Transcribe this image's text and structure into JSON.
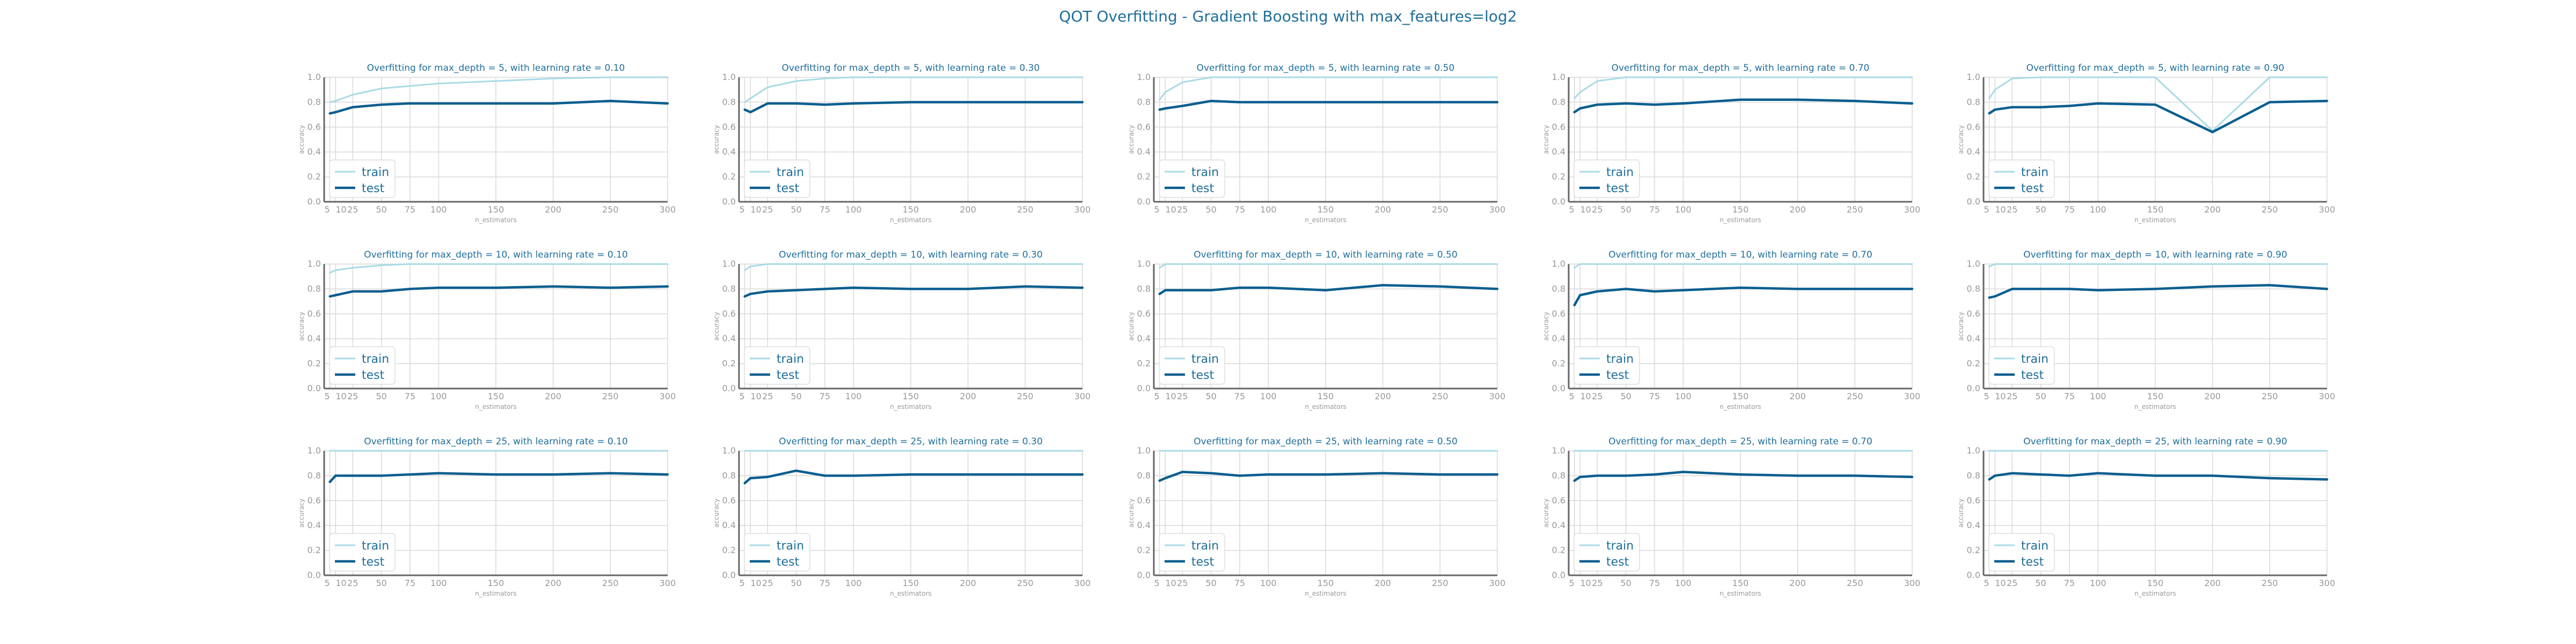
{
  "title": "QOT Overfitting - Gradient Boosting with max_features=log2",
  "colors": {
    "train": "#a8dbe6",
    "test": "#0a5e8f",
    "title": "#1f6e9a",
    "grid": "#d9d9d9",
    "axis": "#666666",
    "tick": "#999999"
  },
  "chart_data": [
    {
      "type": "line",
      "title": "Overfitting for max_depth = 5, with learning rate = 0.10",
      "xlabel": "n_estimators",
      "ylabel": "accuracy",
      "x": [
        5,
        10,
        25,
        50,
        75,
        100,
        150,
        200,
        250,
        300
      ],
      "ylim": [
        0,
        1
      ],
      "xticks": [
        5,
        10,
        25,
        50,
        75,
        100,
        150,
        200,
        250,
        300
      ],
      "yticks": [
        0.0,
        0.2,
        0.4,
        0.6,
        0.8,
        1.0
      ],
      "grid": true,
      "legend": "lower-left",
      "series": [
        {
          "name": "train",
          "values": [
            0.8,
            0.81,
            0.86,
            0.91,
            0.93,
            0.95,
            0.97,
            0.99,
            1.0,
            1.0
          ]
        },
        {
          "name": "test",
          "values": [
            0.71,
            0.72,
            0.76,
            0.78,
            0.79,
            0.79,
            0.79,
            0.79,
            0.81,
            0.79
          ]
        }
      ]
    },
    {
      "type": "line",
      "title": "Overfitting for max_depth = 5, with learning rate = 0.30",
      "xlabel": "n_estimators",
      "ylabel": "accuracy",
      "x": [
        5,
        10,
        25,
        50,
        75,
        100,
        150,
        200,
        250,
        300
      ],
      "ylim": [
        0,
        1
      ],
      "xticks": [
        5,
        10,
        25,
        50,
        75,
        100,
        150,
        200,
        250,
        300
      ],
      "yticks": [
        0.0,
        0.2,
        0.4,
        0.6,
        0.8,
        1.0
      ],
      "grid": true,
      "legend": "lower-left",
      "series": [
        {
          "name": "train",
          "values": [
            0.8,
            0.83,
            0.92,
            0.97,
            0.99,
            1.0,
            1.0,
            1.0,
            1.0,
            1.0
          ]
        },
        {
          "name": "test",
          "values": [
            0.74,
            0.72,
            0.79,
            0.79,
            0.78,
            0.79,
            0.8,
            0.8,
            0.8,
            0.8
          ]
        }
      ]
    },
    {
      "type": "line",
      "title": "Overfitting for max_depth = 5, with learning rate = 0.50",
      "xlabel": "n_estimators",
      "ylabel": "accuracy",
      "x": [
        5,
        10,
        25,
        50,
        75,
        100,
        150,
        200,
        250,
        300
      ],
      "ylim": [
        0,
        1
      ],
      "xticks": [
        5,
        10,
        25,
        50,
        75,
        100,
        150,
        200,
        250,
        300
      ],
      "yticks": [
        0.0,
        0.2,
        0.4,
        0.6,
        0.8,
        1.0
      ],
      "grid": true,
      "legend": "lower-left",
      "series": [
        {
          "name": "train",
          "values": [
            0.82,
            0.88,
            0.96,
            1.0,
            1.0,
            1.0,
            1.0,
            1.0,
            1.0,
            1.0
          ]
        },
        {
          "name": "test",
          "values": [
            0.74,
            0.75,
            0.77,
            0.81,
            0.8,
            0.8,
            0.8,
            0.8,
            0.8,
            0.8
          ]
        }
      ]
    },
    {
      "type": "line",
      "title": "Overfitting for max_depth = 5, with learning rate = 0.70",
      "xlabel": "n_estimators",
      "ylabel": "accuracy",
      "x": [
        5,
        10,
        25,
        50,
        75,
        100,
        150,
        200,
        250,
        300
      ],
      "ylim": [
        0,
        1
      ],
      "xticks": [
        5,
        10,
        25,
        50,
        75,
        100,
        150,
        200,
        250,
        300
      ],
      "yticks": [
        0.0,
        0.2,
        0.4,
        0.6,
        0.8,
        1.0
      ],
      "grid": true,
      "legend": "lower-left",
      "series": [
        {
          "name": "train",
          "values": [
            0.83,
            0.88,
            0.97,
            1.0,
            1.0,
            1.0,
            1.0,
            1.0,
            1.0,
            1.0
          ]
        },
        {
          "name": "test",
          "values": [
            0.72,
            0.75,
            0.78,
            0.79,
            0.78,
            0.79,
            0.82,
            0.82,
            0.81,
            0.79
          ]
        }
      ]
    },
    {
      "type": "line",
      "title": "Overfitting for max_depth = 5, with learning rate = 0.90",
      "xlabel": "n_estimators",
      "ylabel": "accuracy",
      "x": [
        5,
        10,
        25,
        50,
        75,
        100,
        150,
        200,
        250,
        300
      ],
      "ylim": [
        0,
        1
      ],
      "xticks": [
        5,
        10,
        25,
        50,
        75,
        100,
        150,
        200,
        250,
        300
      ],
      "yticks": [
        0.0,
        0.2,
        0.4,
        0.6,
        0.8,
        1.0
      ],
      "grid": true,
      "legend": "lower-left",
      "series": [
        {
          "name": "train",
          "values": [
            0.83,
            0.9,
            0.99,
            1.0,
            1.0,
            1.0,
            1.0,
            0.57,
            1.0,
            1.0
          ]
        },
        {
          "name": "test",
          "values": [
            0.71,
            0.74,
            0.76,
            0.76,
            0.77,
            0.79,
            0.78,
            0.56,
            0.8,
            0.81
          ]
        }
      ]
    },
    {
      "type": "line",
      "title": "Overfitting for max_depth = 10, with learning rate = 0.10",
      "xlabel": "n_estimators",
      "ylabel": "accuracy",
      "x": [
        5,
        10,
        25,
        50,
        75,
        100,
        150,
        200,
        250,
        300
      ],
      "ylim": [
        0,
        1
      ],
      "xticks": [
        5,
        10,
        25,
        50,
        75,
        100,
        150,
        200,
        250,
        300
      ],
      "yticks": [
        0.0,
        0.2,
        0.4,
        0.6,
        0.8,
        1.0
      ],
      "grid": true,
      "legend": "lower-left",
      "series": [
        {
          "name": "train",
          "values": [
            0.93,
            0.95,
            0.97,
            0.99,
            1.0,
            1.0,
            1.0,
            1.0,
            1.0,
            1.0
          ]
        },
        {
          "name": "test",
          "values": [
            0.74,
            0.75,
            0.78,
            0.78,
            0.8,
            0.81,
            0.81,
            0.82,
            0.81,
            0.82
          ]
        }
      ]
    },
    {
      "type": "line",
      "title": "Overfitting for max_depth = 10, with learning rate = 0.30",
      "xlabel": "n_estimators",
      "ylabel": "accuracy",
      "x": [
        5,
        10,
        25,
        50,
        75,
        100,
        150,
        200,
        250,
        300
      ],
      "ylim": [
        0,
        1
      ],
      "xticks": [
        5,
        10,
        25,
        50,
        75,
        100,
        150,
        200,
        250,
        300
      ],
      "yticks": [
        0.0,
        0.2,
        0.4,
        0.6,
        0.8,
        1.0
      ],
      "grid": true,
      "legend": "lower-left",
      "series": [
        {
          "name": "train",
          "values": [
            0.95,
            0.98,
            1.0,
            1.0,
            1.0,
            1.0,
            1.0,
            1.0,
            1.0,
            1.0
          ]
        },
        {
          "name": "test",
          "values": [
            0.74,
            0.76,
            0.78,
            0.79,
            0.8,
            0.81,
            0.8,
            0.8,
            0.82,
            0.81
          ]
        }
      ]
    },
    {
      "type": "line",
      "title": "Overfitting for max_depth = 10, with learning rate = 0.50",
      "xlabel": "n_estimators",
      "ylabel": "accuracy",
      "x": [
        5,
        10,
        25,
        50,
        75,
        100,
        150,
        200,
        250,
        300
      ],
      "ylim": [
        0,
        1
      ],
      "xticks": [
        5,
        10,
        25,
        50,
        75,
        100,
        150,
        200,
        250,
        300
      ],
      "yticks": [
        0.0,
        0.2,
        0.4,
        0.6,
        0.8,
        1.0
      ],
      "grid": true,
      "legend": "lower-left",
      "series": [
        {
          "name": "train",
          "values": [
            0.97,
            1.0,
            1.0,
            1.0,
            1.0,
            1.0,
            1.0,
            1.0,
            1.0,
            1.0
          ]
        },
        {
          "name": "test",
          "values": [
            0.76,
            0.79,
            0.79,
            0.79,
            0.81,
            0.81,
            0.79,
            0.83,
            0.82,
            0.8
          ]
        }
      ]
    },
    {
      "type": "line",
      "title": "Overfitting for max_depth = 10, with learning rate = 0.70",
      "xlabel": "n_estimators",
      "ylabel": "accuracy",
      "x": [
        5,
        10,
        25,
        50,
        75,
        100,
        150,
        200,
        250,
        300
      ],
      "ylim": [
        0,
        1
      ],
      "xticks": [
        5,
        10,
        25,
        50,
        75,
        100,
        150,
        200,
        250,
        300
      ],
      "yticks": [
        0.0,
        0.2,
        0.4,
        0.6,
        0.8,
        1.0
      ],
      "grid": true,
      "legend": "lower-left",
      "series": [
        {
          "name": "train",
          "values": [
            0.97,
            1.0,
            1.0,
            1.0,
            1.0,
            1.0,
            1.0,
            1.0,
            1.0,
            1.0
          ]
        },
        {
          "name": "test",
          "values": [
            0.67,
            0.75,
            0.78,
            0.8,
            0.78,
            0.79,
            0.81,
            0.8,
            0.8,
            0.8
          ]
        }
      ]
    },
    {
      "type": "line",
      "title": "Overfitting for max_depth = 10, with learning rate = 0.90",
      "xlabel": "n_estimators",
      "ylabel": "accuracy",
      "x": [
        5,
        10,
        25,
        50,
        75,
        100,
        150,
        200,
        250,
        300
      ],
      "ylim": [
        0,
        1
      ],
      "xticks": [
        5,
        10,
        25,
        50,
        75,
        100,
        150,
        200,
        250,
        300
      ],
      "yticks": [
        0.0,
        0.2,
        0.4,
        0.6,
        0.8,
        1.0
      ],
      "grid": true,
      "legend": "lower-left",
      "series": [
        {
          "name": "train",
          "values": [
            0.98,
            1.0,
            1.0,
            1.0,
            1.0,
            1.0,
            1.0,
            1.0,
            1.0,
            1.0
          ]
        },
        {
          "name": "test",
          "values": [
            0.73,
            0.74,
            0.8,
            0.8,
            0.8,
            0.79,
            0.8,
            0.82,
            0.83,
            0.8
          ]
        }
      ]
    },
    {
      "type": "line",
      "title": "Overfitting for max_depth = 25, with learning rate = 0.10",
      "xlabel": "n_estimators",
      "ylabel": "accuracy",
      "x": [
        5,
        10,
        25,
        50,
        75,
        100,
        150,
        200,
        250,
        300
      ],
      "ylim": [
        0,
        1
      ],
      "xticks": [
        5,
        10,
        25,
        50,
        75,
        100,
        150,
        200,
        250,
        300
      ],
      "yticks": [
        0.0,
        0.2,
        0.4,
        0.6,
        0.8,
        1.0
      ],
      "grid": true,
      "legend": "lower-left",
      "series": [
        {
          "name": "train",
          "values": [
            1.0,
            1.0,
            1.0,
            1.0,
            1.0,
            1.0,
            1.0,
            1.0,
            1.0,
            1.0
          ]
        },
        {
          "name": "test",
          "values": [
            0.75,
            0.8,
            0.8,
            0.8,
            0.81,
            0.82,
            0.81,
            0.81,
            0.82,
            0.81
          ]
        }
      ]
    },
    {
      "type": "line",
      "title": "Overfitting for max_depth = 25, with learning rate = 0.30",
      "xlabel": "n_estimators",
      "ylabel": "accuracy",
      "x": [
        5,
        10,
        25,
        50,
        75,
        100,
        150,
        200,
        250,
        300
      ],
      "ylim": [
        0,
        1
      ],
      "xticks": [
        5,
        10,
        25,
        50,
        75,
        100,
        150,
        200,
        250,
        300
      ],
      "yticks": [
        0.0,
        0.2,
        0.4,
        0.6,
        0.8,
        1.0
      ],
      "grid": true,
      "legend": "lower-left",
      "series": [
        {
          "name": "train",
          "values": [
            1.0,
            1.0,
            1.0,
            1.0,
            1.0,
            1.0,
            1.0,
            1.0,
            1.0,
            1.0
          ]
        },
        {
          "name": "test",
          "values": [
            0.74,
            0.78,
            0.79,
            0.84,
            0.8,
            0.8,
            0.81,
            0.81,
            0.81,
            0.81
          ]
        }
      ]
    },
    {
      "type": "line",
      "title": "Overfitting for max_depth = 25, with learning rate = 0.50",
      "xlabel": "n_estimators",
      "ylabel": "accuracy",
      "x": [
        5,
        10,
        25,
        50,
        75,
        100,
        150,
        200,
        250,
        300
      ],
      "ylim": [
        0,
        1
      ],
      "xticks": [
        5,
        10,
        25,
        50,
        75,
        100,
        150,
        200,
        250,
        300
      ],
      "yticks": [
        0.0,
        0.2,
        0.4,
        0.6,
        0.8,
        1.0
      ],
      "grid": true,
      "legend": "lower-left",
      "series": [
        {
          "name": "train",
          "values": [
            1.0,
            1.0,
            1.0,
            1.0,
            1.0,
            1.0,
            1.0,
            1.0,
            1.0,
            1.0
          ]
        },
        {
          "name": "test",
          "values": [
            0.76,
            0.78,
            0.83,
            0.82,
            0.8,
            0.81,
            0.81,
            0.82,
            0.81,
            0.81
          ]
        }
      ]
    },
    {
      "type": "line",
      "title": "Overfitting for max_depth = 25, with learning rate = 0.70",
      "xlabel": "n_estimators",
      "ylabel": "accuracy",
      "x": [
        5,
        10,
        25,
        50,
        75,
        100,
        150,
        200,
        250,
        300
      ],
      "ylim": [
        0,
        1
      ],
      "xticks": [
        5,
        10,
        25,
        50,
        75,
        100,
        150,
        200,
        250,
        300
      ],
      "yticks": [
        0.0,
        0.2,
        0.4,
        0.6,
        0.8,
        1.0
      ],
      "grid": true,
      "legend": "lower-left",
      "series": [
        {
          "name": "train",
          "values": [
            1.0,
            1.0,
            1.0,
            1.0,
            1.0,
            1.0,
            1.0,
            1.0,
            1.0,
            1.0
          ]
        },
        {
          "name": "test",
          "values": [
            0.76,
            0.79,
            0.8,
            0.8,
            0.81,
            0.83,
            0.81,
            0.8,
            0.8,
            0.79
          ]
        }
      ]
    },
    {
      "type": "line",
      "title": "Overfitting for max_depth = 25, with learning rate = 0.90",
      "xlabel": "n_estimators",
      "ylabel": "accuracy",
      "x": [
        5,
        10,
        25,
        50,
        75,
        100,
        150,
        200,
        250,
        300
      ],
      "ylim": [
        0,
        1
      ],
      "xticks": [
        5,
        10,
        25,
        50,
        75,
        100,
        150,
        200,
        250,
        300
      ],
      "yticks": [
        0.0,
        0.2,
        0.4,
        0.6,
        0.8,
        1.0
      ],
      "grid": true,
      "legend": "lower-left",
      "series": [
        {
          "name": "train",
          "values": [
            1.0,
            1.0,
            1.0,
            1.0,
            1.0,
            1.0,
            1.0,
            1.0,
            1.0,
            1.0
          ]
        },
        {
          "name": "test",
          "values": [
            0.77,
            0.8,
            0.82,
            0.81,
            0.8,
            0.82,
            0.8,
            0.8,
            0.78,
            0.77
          ]
        }
      ]
    }
  ]
}
